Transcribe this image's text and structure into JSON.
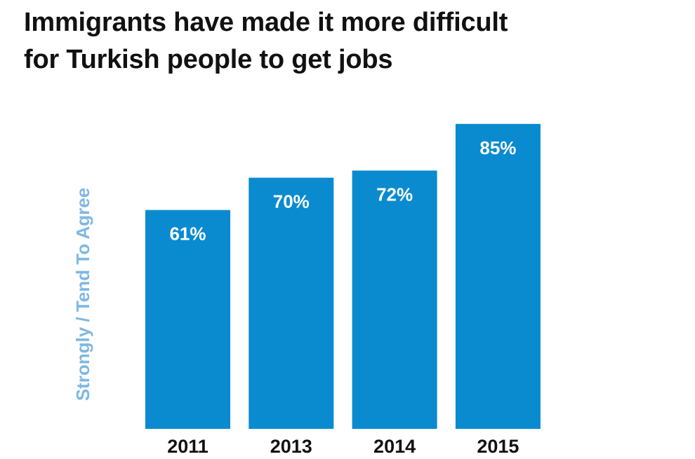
{
  "chart_data": {
    "type": "bar",
    "title": [
      "Immigrants have made it more difficult",
      "for Turkish people to get jobs"
    ],
    "xlabel": "",
    "ylabel": "Strongly / Tend To Agree",
    "categories": [
      "2011",
      "2013",
      "2014",
      "2015"
    ],
    "values": [
      61,
      70,
      72,
      85
    ],
    "data_labels": [
      "61%",
      "70%",
      "72%",
      "85%"
    ],
    "ylim": [
      0,
      100
    ],
    "grid": false,
    "legend": "none",
    "colors": {
      "bar": "#0a8bd0",
      "data_label": "#ffffff",
      "ylabel": "#7fb8e2",
      "tick": "#111111",
      "title": "#111111"
    }
  }
}
